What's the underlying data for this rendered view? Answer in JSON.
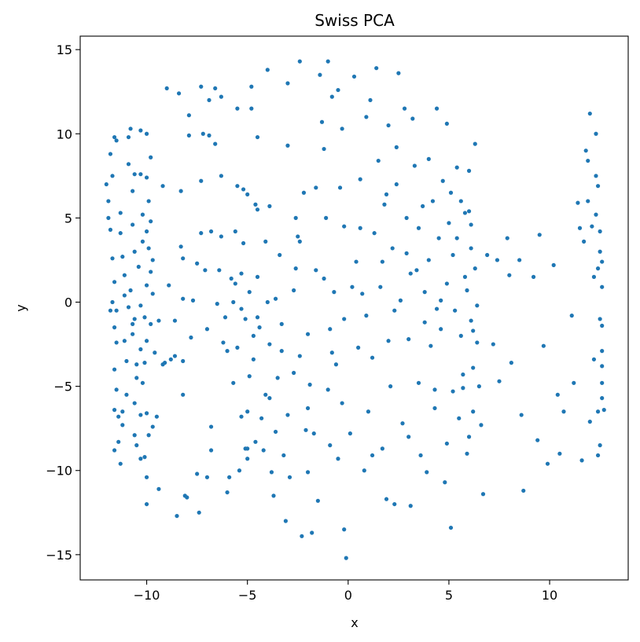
{
  "chart_data": {
    "type": "scatter",
    "title": "Swiss PCA",
    "xlabel": "x",
    "ylabel": "y",
    "xlim": [
      -13.3,
      13.9
    ],
    "ylim": [
      -16.5,
      15.8
    ],
    "xticks": [
      -10,
      -5,
      0,
      5,
      10
    ],
    "yticks": [
      -15,
      -10,
      -5,
      0,
      5,
      10,
      15
    ],
    "grid": false,
    "legend": "none",
    "marker_color": "#1f77b4",
    "points": [
      [
        -12.0,
        7.0
      ],
      [
        -11.9,
        6.0
      ],
      [
        -11.9,
        5.0
      ],
      [
        -11.8,
        4.3
      ],
      [
        -11.8,
        8.8
      ],
      [
        -11.7,
        7.5
      ],
      [
        -11.6,
        9.8
      ],
      [
        -11.5,
        9.6
      ],
      [
        -11.7,
        2.6
      ],
      [
        -11.6,
        1.2
      ],
      [
        -11.7,
        0.0
      ],
      [
        -11.5,
        -0.5
      ],
      [
        -11.6,
        -1.5
      ],
      [
        -11.5,
        -2.4
      ],
      [
        -11.6,
        -4.0
      ],
      [
        -11.5,
        -5.2
      ],
      [
        -11.6,
        -6.4
      ],
      [
        -11.4,
        -6.8
      ],
      [
        -11.6,
        -8.8
      ],
      [
        -11.4,
        -8.3
      ],
      [
        -11.3,
        -9.6
      ],
      [
        -11.3,
        5.3
      ],
      [
        -11.3,
        4.1
      ],
      [
        -11.2,
        2.7
      ],
      [
        -11.1,
        -2.3
      ],
      [
        -11.0,
        -3.5
      ],
      [
        -11.0,
        -5.5
      ],
      [
        -11.2,
        -6.5
      ],
      [
        -11.2,
        -7.3
      ],
      [
        -10.9,
        9.8
      ],
      [
        -10.9,
        8.2
      ],
      [
        -10.8,
        10.3
      ],
      [
        -10.7,
        6.6
      ],
      [
        -10.6,
        7.6
      ],
      [
        -10.7,
        4.6
      ],
      [
        -10.6,
        3.0
      ],
      [
        -10.8,
        0.7
      ],
      [
        -10.9,
        -0.3
      ],
      [
        -10.6,
        -1.0
      ],
      [
        -10.7,
        -1.9
      ],
      [
        -10.5,
        -3.7
      ],
      [
        -10.5,
        -4.5
      ],
      [
        -10.6,
        -6.0
      ],
      [
        -10.6,
        -7.9
      ],
      [
        -10.5,
        -8.5
      ],
      [
        -10.3,
        10.2
      ],
      [
        -10.3,
        7.6
      ],
      [
        -10.2,
        5.2
      ],
      [
        -10.2,
        3.6
      ],
      [
        -10.4,
        2.1
      ],
      [
        -10.3,
        -0.2
      ],
      [
        -10.3,
        -2.8
      ],
      [
        -10.2,
        -4.8
      ],
      [
        -10.3,
        -6.7
      ],
      [
        -10.3,
        -9.3
      ],
      [
        -10.1,
        -9.2
      ],
      [
        -10.0,
        10.0
      ],
      [
        -10.0,
        7.4
      ],
      [
        -9.9,
        6.0
      ],
      [
        -10.0,
        4.2
      ],
      [
        -9.9,
        3.2
      ],
      [
        -10.0,
        1.0
      ],
      [
        -10.1,
        -0.9
      ],
      [
        -10.0,
        -2.3
      ],
      [
        -10.1,
        -3.6
      ],
      [
        -10.0,
        -6.6
      ],
      [
        -9.9,
        -7.9
      ],
      [
        -10.0,
        -10.4
      ],
      [
        -10.0,
        -12.0
      ],
      [
        -9.8,
        8.6
      ],
      [
        -9.8,
        4.8
      ],
      [
        -9.7,
        2.5
      ],
      [
        -9.7,
        0.5
      ],
      [
        -9.8,
        -1.3
      ],
      [
        -9.6,
        -3.0
      ],
      [
        -9.7,
        -7.4
      ],
      [
        -9.4,
        -11.1
      ],
      [
        -9.4,
        -1.1
      ],
      [
        -9.2,
        6.9
      ],
      [
        -9.1,
        -3.6
      ],
      [
        -9.0,
        12.7
      ],
      [
        -8.9,
        1.0
      ],
      [
        -8.8,
        -3.4
      ],
      [
        -8.6,
        -3.2
      ],
      [
        -8.5,
        -12.7
      ],
      [
        -8.4,
        12.4
      ],
      [
        -8.3,
        6.6
      ],
      [
        -8.3,
        3.3
      ],
      [
        -8.2,
        2.6
      ],
      [
        -8.2,
        0.2
      ],
      [
        -8.2,
        -3.5
      ],
      [
        -8.2,
        -5.5
      ],
      [
        -8.1,
        -11.5
      ],
      [
        -8.0,
        -11.6
      ],
      [
        -7.9,
        9.9
      ],
      [
        -7.9,
        11.1
      ],
      [
        -7.8,
        -2.1
      ],
      [
        -7.7,
        0.1
      ],
      [
        -7.5,
        2.3
      ],
      [
        -7.5,
        -10.2
      ],
      [
        -7.4,
        -12.5
      ],
      [
        -7.3,
        12.8
      ],
      [
        -7.3,
        7.2
      ],
      [
        -7.2,
        10.0
      ],
      [
        -7.1,
        1.9
      ],
      [
        -7.0,
        -10.4
      ],
      [
        -6.9,
        12.0
      ],
      [
        -6.9,
        9.9
      ],
      [
        -6.8,
        4.2
      ],
      [
        -6.8,
        -7.4
      ],
      [
        -6.8,
        -8.8
      ],
      [
        -6.6,
        12.7
      ],
      [
        -6.6,
        9.4
      ],
      [
        -6.4,
        1.9
      ],
      [
        -6.3,
        3.9
      ],
      [
        -6.3,
        7.5
      ],
      [
        -6.3,
        12.2
      ],
      [
        -6.2,
        -2.4
      ],
      [
        -6.1,
        -0.9
      ],
      [
        -6.0,
        -11.3
      ],
      [
        -5.9,
        -10.4
      ],
      [
        -5.7,
        0.0
      ],
      [
        -5.7,
        -4.8
      ],
      [
        -5.6,
        4.2
      ],
      [
        -5.5,
        6.9
      ],
      [
        -5.5,
        11.5
      ],
      [
        -5.5,
        -2.7
      ],
      [
        -5.4,
        -10.0
      ],
      [
        -5.3,
        1.7
      ],
      [
        -5.3,
        -0.4
      ],
      [
        -5.3,
        -6.8
      ],
      [
        -5.2,
        6.7
      ],
      [
        -5.2,
        3.5
      ],
      [
        -5.1,
        -1.0
      ],
      [
        -5.1,
        -8.7
      ],
      [
        -5.0,
        6.4
      ],
      [
        -5.0,
        -6.5
      ],
      [
        -5.0,
        -9.3
      ],
      [
        -4.9,
        0.6
      ],
      [
        -4.9,
        -4.4
      ],
      [
        -4.8,
        12.8
      ],
      [
        -4.8,
        11.5
      ],
      [
        -4.7,
        -3.4
      ],
      [
        -4.6,
        5.8
      ],
      [
        -4.6,
        -8.3
      ],
      [
        -4.5,
        9.8
      ],
      [
        -4.5,
        5.5
      ],
      [
        -4.5,
        1.5
      ],
      [
        -4.5,
        -0.9
      ],
      [
        -4.3,
        -6.9
      ],
      [
        -4.2,
        -8.8
      ],
      [
        -4.1,
        3.6
      ],
      [
        -4.0,
        13.8
      ],
      [
        -4.0,
        0.0
      ],
      [
        -3.9,
        -2.5
      ],
      [
        -3.9,
        -5.7
      ],
      [
        -3.8,
        -10.1
      ],
      [
        -3.7,
        -11.5
      ],
      [
        -3.6,
        -7.7
      ],
      [
        -3.5,
        -4.5
      ],
      [
        -3.4,
        2.8
      ],
      [
        -3.3,
        -2.9
      ],
      [
        -3.2,
        -9.1
      ],
      [
        -3.1,
        -13.0
      ],
      [
        -3.0,
        13.0
      ],
      [
        -3.0,
        9.3
      ],
      [
        -3.0,
        -6.7
      ],
      [
        -2.9,
        -10.4
      ],
      [
        -2.7,
        0.7
      ],
      [
        -2.7,
        -4.2
      ],
      [
        -2.6,
        5.0
      ],
      [
        -2.5,
        3.9
      ],
      [
        -2.4,
        14.3
      ],
      [
        -2.4,
        -3.2
      ],
      [
        -2.3,
        -13.9
      ],
      [
        -2.2,
        6.5
      ],
      [
        -2.1,
        -7.6
      ],
      [
        -2.0,
        -10.1
      ],
      [
        -1.9,
        -4.9
      ],
      [
        -1.8,
        -13.7
      ],
      [
        -1.7,
        -7.8
      ],
      [
        -1.6,
        1.9
      ],
      [
        -1.5,
        -11.8
      ],
      [
        -1.4,
        13.5
      ],
      [
        -1.3,
        10.7
      ],
      [
        -1.2,
        9.1
      ],
      [
        -1.1,
        5.0
      ],
      [
        -1.0,
        14.3
      ],
      [
        -1.0,
        -5.2
      ],
      [
        -0.9,
        -8.5
      ],
      [
        -0.8,
        12.2
      ],
      [
        -0.7,
        0.6
      ],
      [
        -0.6,
        -3.7
      ],
      [
        -0.5,
        -9.3
      ],
      [
        -0.5,
        12.6
      ],
      [
        -0.4,
        6.8
      ],
      [
        -0.3,
        10.3
      ],
      [
        -0.2,
        4.5
      ],
      [
        -0.2,
        -1.0
      ],
      [
        -0.2,
        -13.5
      ],
      [
        -0.1,
        -15.2
      ],
      [
        0.1,
        -7.8
      ],
      [
        0.3,
        13.4
      ],
      [
        0.4,
        2.4
      ],
      [
        0.5,
        -2.7
      ],
      [
        0.6,
        4.4
      ],
      [
        0.7,
        0.5
      ],
      [
        0.8,
        -10.0
      ],
      [
        0.9,
        11.0
      ],
      [
        1.0,
        -6.5
      ],
      [
        1.1,
        12.0
      ],
      [
        1.2,
        -3.3
      ],
      [
        1.3,
        4.1
      ],
      [
        1.4,
        13.9
      ],
      [
        1.5,
        8.4
      ],
      [
        1.6,
        0.9
      ],
      [
        1.7,
        -8.7
      ],
      [
        1.8,
        5.8
      ],
      [
        1.9,
        -11.7
      ],
      [
        2.0,
        10.5
      ],
      [
        2.1,
        -5.0
      ],
      [
        2.2,
        3.2
      ],
      [
        2.3,
        -12.0
      ],
      [
        2.4,
        9.2
      ],
      [
        2.5,
        13.6
      ],
      [
        2.6,
        0.1
      ],
      [
        2.7,
        -7.2
      ],
      [
        2.8,
        11.5
      ],
      [
        2.9,
        5.0
      ],
      [
        3.0,
        -2.2
      ],
      [
        3.1,
        -12.1
      ],
      [
        3.2,
        10.9
      ],
      [
        3.3,
        8.1
      ],
      [
        3.4,
        1.9
      ],
      [
        3.5,
        -4.8
      ],
      [
        3.6,
        -9.1
      ],
      [
        3.7,
        5.7
      ],
      [
        3.8,
        0.6
      ],
      [
        3.9,
        -10.1
      ],
      [
        4.0,
        8.5
      ],
      [
        4.1,
        -2.6
      ],
      [
        4.2,
        6.0
      ],
      [
        4.3,
        -6.3
      ],
      [
        4.4,
        11.5
      ],
      [
        4.5,
        3.8
      ],
      [
        4.6,
        -1.6
      ],
      [
        4.7,
        7.2
      ],
      [
        4.8,
        -10.7
      ],
      [
        4.9,
        10.6
      ],
      [
        5.0,
        4.7
      ],
      [
        5.1,
        -13.4
      ],
      [
        5.2,
        2.8
      ],
      [
        5.3,
        -0.5
      ],
      [
        5.4,
        8.0
      ],
      [
        5.5,
        -6.9
      ],
      [
        5.6,
        6.0
      ],
      [
        5.7,
        -4.3
      ],
      [
        5.8,
        1.5
      ],
      [
        5.9,
        -9.0
      ],
      [
        6.0,
        7.8
      ],
      [
        6.0,
        5.4
      ],
      [
        6.1,
        3.2
      ],
      [
        6.1,
        -1.1
      ],
      [
        6.2,
        -3.9
      ],
      [
        6.2,
        -6.5
      ],
      [
        6.3,
        9.4
      ],
      [
        6.3,
        2.0
      ],
      [
        6.4,
        -0.2
      ],
      [
        6.4,
        -2.4
      ],
      [
        6.5,
        -5.0
      ],
      [
        6.6,
        -7.3
      ],
      [
        6.7,
        -11.4
      ],
      [
        6.9,
        2.8
      ],
      [
        7.2,
        -2.5
      ],
      [
        7.4,
        2.5
      ],
      [
        7.5,
        -4.7
      ],
      [
        7.9,
        3.8
      ],
      [
        8.0,
        1.6
      ],
      [
        8.1,
        -3.6
      ],
      [
        8.5,
        2.5
      ],
      [
        8.6,
        -6.7
      ],
      [
        8.7,
        -11.2
      ],
      [
        9.2,
        1.5
      ],
      [
        9.4,
        -8.2
      ],
      [
        9.5,
        4.0
      ],
      [
        9.7,
        -2.6
      ],
      [
        9.9,
        -9.6
      ],
      [
        10.2,
        2.2
      ],
      [
        10.4,
        -5.5
      ],
      [
        10.5,
        -9.0
      ],
      [
        10.7,
        -6.5
      ],
      [
        11.1,
        -0.8
      ],
      [
        11.2,
        -4.8
      ],
      [
        11.4,
        5.9
      ],
      [
        11.5,
        4.4
      ],
      [
        11.6,
        -9.4
      ],
      [
        11.7,
        3.6
      ],
      [
        11.8,
        9.0
      ],
      [
        11.9,
        6.0
      ],
      [
        12.0,
        11.2
      ],
      [
        12.1,
        4.5
      ],
      [
        12.2,
        -3.4
      ],
      [
        12.3,
        10.0
      ],
      [
        12.4,
        2.0
      ],
      [
        12.4,
        -6.5
      ],
      [
        12.5,
        -1.0
      ],
      [
        12.5,
        4.2
      ],
      [
        12.6,
        -4.8
      ],
      [
        12.6,
        0.9
      ],
      [
        12.6,
        -2.9
      ],
      [
        12.6,
        -5.7
      ],
      [
        12.7,
        -6.4
      ],
      [
        12.0,
        -7.1
      ],
      [
        12.4,
        -9.1
      ],
      [
        12.5,
        -8.5
      ],
      [
        12.6,
        -3.8
      ],
      [
        12.2,
        1.5
      ],
      [
        12.5,
        3.0
      ],
      [
        11.9,
        8.4
      ],
      [
        12.3,
        7.5
      ],
      [
        12.4,
        6.9
      ],
      [
        12.3,
        5.2
      ],
      [
        12.6,
        2.4
      ],
      [
        12.6,
        -1.4
      ],
      [
        -11.8,
        -0.5
      ],
      [
        -11.1,
        1.6
      ],
      [
        -10.7,
        -1.3
      ],
      [
        -9.2,
        -3.7
      ],
      [
        -6.5,
        -0.1
      ],
      [
        -5.8,
        1.4
      ],
      [
        -4.4,
        -1.5
      ],
      [
        -3.6,
        0.2
      ],
      [
        -2.0,
        -1.9
      ],
      [
        -1.2,
        1.4
      ],
      [
        -0.9,
        -1.6
      ],
      [
        0.2,
        0.9
      ],
      [
        0.9,
        -0.8
      ],
      [
        1.7,
        2.4
      ],
      [
        2.3,
        -0.5
      ],
      [
        3.1,
        1.7
      ],
      [
        3.8,
        -1.2
      ],
      [
        4.4,
        -0.4
      ],
      [
        4.9,
        1.1
      ],
      [
        5.6,
        -2.0
      ],
      [
        5.9,
        0.7
      ],
      [
        6.2,
        -1.7
      ],
      [
        -4.7,
        -2.0
      ],
      [
        -2.6,
        2.0
      ],
      [
        1.9,
        6.4
      ],
      [
        2.9,
        2.9
      ],
      [
        4.0,
        2.5
      ],
      [
        4.6,
        0.1
      ],
      [
        5.2,
        -5.3
      ],
      [
        4.9,
        -8.4
      ],
      [
        3.0,
        -8.0
      ],
      [
        1.2,
        -9.1
      ],
      [
        -0.3,
        -6.0
      ],
      [
        -2.0,
        -6.3
      ],
      [
        -4.1,
        -5.5
      ],
      [
        -5.0,
        -8.7
      ],
      [
        -6.0,
        -2.9
      ],
      [
        -7.0,
        -1.6
      ],
      [
        -8.6,
        -1.1
      ],
      [
        -9.5,
        -6.8
      ],
      [
        -3.9,
        5.7
      ],
      [
        -2.4,
        3.6
      ],
      [
        -1.6,
        6.8
      ],
      [
        0.6,
        7.3
      ],
      [
        2.4,
        7.0
      ],
      [
        3.5,
        4.4
      ],
      [
        5.1,
        6.5
      ],
      [
        5.8,
        5.3
      ],
      [
        6.1,
        4.6
      ],
      [
        5.4,
        3.8
      ],
      [
        6.0,
        -8.0
      ],
      [
        5.7,
        -5.1
      ],
      [
        4.3,
        -5.2
      ],
      [
        2.0,
        -2.3
      ],
      [
        -0.8,
        -3.0
      ],
      [
        -3.3,
        -1.3
      ],
      [
        -5.6,
        1.1
      ],
      [
        -7.3,
        4.1
      ],
      [
        -9.8,
        1.8
      ],
      [
        -11.1,
        0.4
      ]
    ]
  }
}
